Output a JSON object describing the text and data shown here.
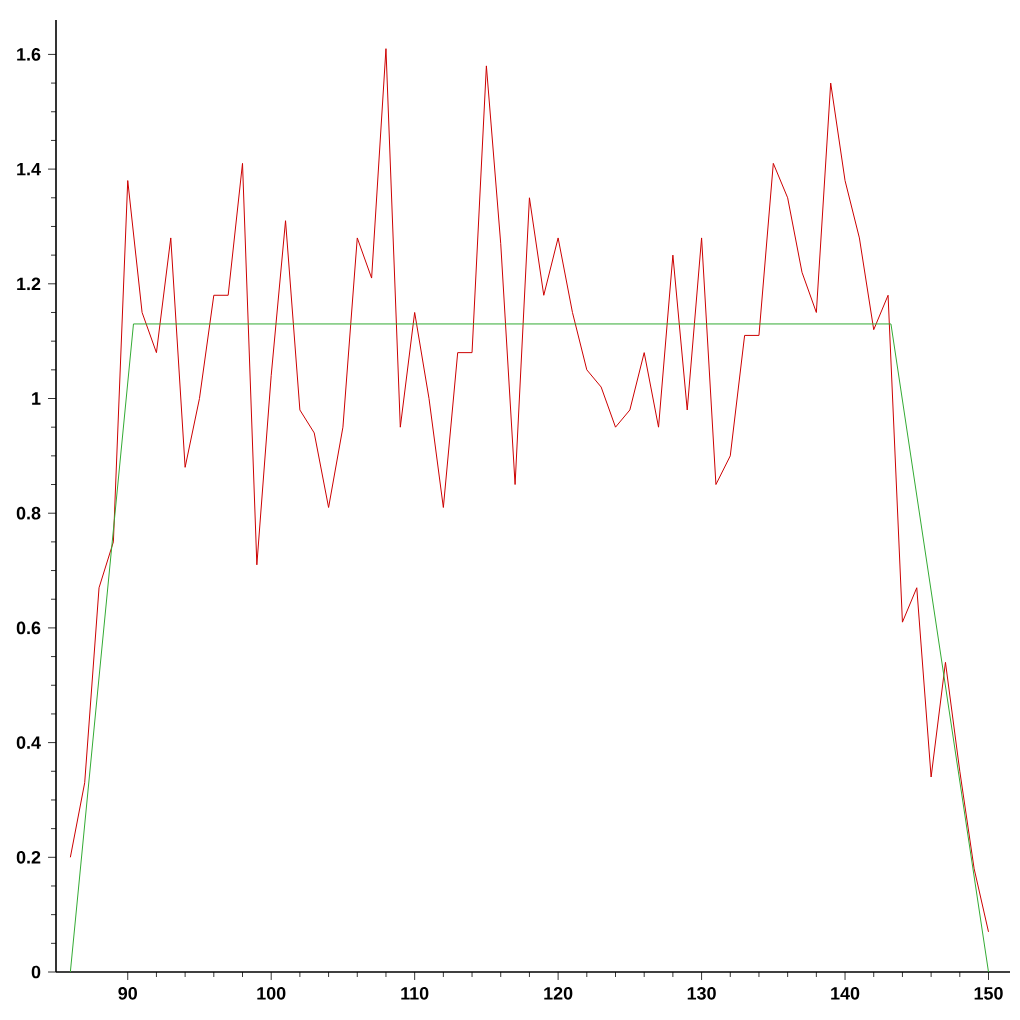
{
  "chart_data": {
    "type": "line",
    "xlim": [
      85,
      151.5
    ],
    "ylim": [
      0,
      1.66
    ],
    "xticks": [
      90,
      100,
      110,
      120,
      130,
      140,
      150
    ],
    "yticks": [
      0,
      0.2,
      0.4,
      0.6,
      0.8,
      1,
      1.2,
      1.4,
      1.6
    ],
    "grid": false,
    "marker": "none",
    "line_style": "solid",
    "series": [
      {
        "color": "#cc0000",
        "x": [
          86,
          87,
          88,
          89,
          90,
          91,
          92,
          93,
          94,
          95,
          96,
          97,
          98,
          99,
          100,
          101,
          102,
          103,
          104,
          105,
          106,
          107,
          108,
          109,
          110,
          111,
          112,
          113,
          114,
          115,
          116,
          117,
          118,
          119,
          120,
          121,
          122,
          123,
          124,
          125,
          126,
          127,
          128,
          129,
          130,
          131,
          132,
          133,
          134,
          135,
          136,
          137,
          138,
          139,
          140,
          141,
          142,
          143,
          144,
          145,
          146,
          147,
          148,
          149,
          150
        ],
        "values": [
          0.2,
          0.33,
          0.67,
          0.75,
          1.38,
          1.15,
          1.08,
          1.28,
          0.88,
          1.0,
          1.18,
          1.18,
          1.41,
          0.71,
          1.04,
          1.31,
          0.98,
          0.94,
          0.81,
          0.95,
          1.28,
          1.21,
          1.61,
          0.95,
          1.15,
          1.0,
          0.81,
          1.08,
          1.08,
          1.58,
          1.27,
          0.85,
          1.35,
          1.18,
          1.28,
          1.15,
          1.05,
          1.02,
          0.95,
          0.98,
          1.08,
          0.95,
          1.25,
          0.98,
          1.28,
          0.85,
          0.9,
          1.11,
          1.11,
          1.41,
          1.35,
          1.22,
          1.15,
          1.55,
          1.38,
          1.28,
          1.12,
          1.18,
          0.61,
          0.67,
          0.34,
          0.54,
          0.35,
          0.18,
          0.07
        ]
      },
      {
        "color": "#33aa33",
        "x": [
          86,
          90.4,
          143.2,
          150
        ],
        "values": [
          0,
          1.13,
          1.13,
          0
        ]
      }
    ]
  }
}
